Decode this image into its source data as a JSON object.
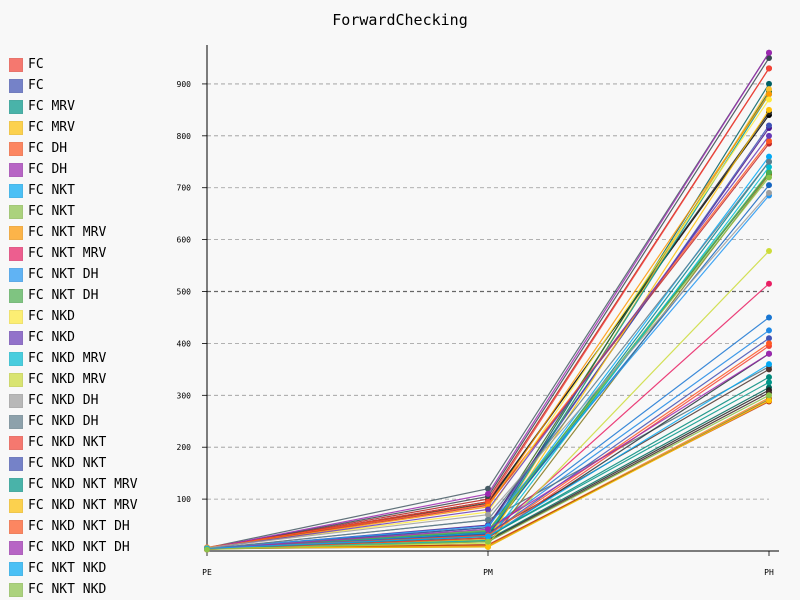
{
  "chart_data": {
    "type": "line",
    "title": "ForwardChecking",
    "categories": [
      "PE",
      "PM",
      "PH"
    ],
    "y_ticks": [
      100,
      200,
      300,
      400,
      500,
      600,
      700,
      800,
      900
    ],
    "ylim": [
      0,
      975
    ],
    "grid": true,
    "legend_position": "left",
    "series": [
      {
        "name": "FC",
        "color": "#F44336",
        "values": [
          5,
          95,
          930
        ]
      },
      {
        "name": "FC",
        "color": "#3F51B5",
        "values": [
          4,
          45,
          820
        ]
      },
      {
        "name": "FC MRV",
        "color": "#009688",
        "values": [
          6,
          30,
          880
        ]
      },
      {
        "name": "FC MRV",
        "color": "#FFC107",
        "values": [
          3,
          22,
          850
        ]
      },
      {
        "name": "FC DH",
        "color": "#FF5722",
        "values": [
          7,
          90,
          790
        ]
      },
      {
        "name": "FC DH",
        "color": "#9C27B0",
        "values": [
          5,
          110,
          960
        ]
      },
      {
        "name": "FC NKT",
        "color": "#03A9F4",
        "values": [
          4,
          35,
          760
        ]
      },
      {
        "name": "FC NKT",
        "color": "#8BC34A",
        "values": [
          6,
          40,
          720
        ]
      },
      {
        "name": "FC NKT MRV",
        "color": "#FF9800",
        "values": [
          5,
          85,
          880
        ]
      },
      {
        "name": "FC NKT MRV",
        "color": "#E91E63",
        "values": [
          3,
          30,
          515
        ]
      },
      {
        "name": "FC NKT DH",
        "color": "#2196F3",
        "values": [
          5,
          48,
          685
        ]
      },
      {
        "name": "FC NKT DH",
        "color": "#4CAF50",
        "values": [
          4,
          38,
          730
        ]
      },
      {
        "name": "FC NKD",
        "color": "#FFEB3B",
        "values": [
          6,
          75,
          870
        ]
      },
      {
        "name": "FC NKD",
        "color": "#673AB7",
        "values": [
          5,
          80,
          800
        ]
      },
      {
        "name": "FC NKD MRV",
        "color": "#00BCD4",
        "values": [
          4,
          20,
          740
        ]
      },
      {
        "name": "FC NKD MRV",
        "color": "#CDDC39",
        "values": [
          5,
          15,
          578
        ]
      },
      {
        "name": "FC NKD DH",
        "color": "#9E9E9E",
        "values": [
          6,
          70,
          690
        ]
      },
      {
        "name": "FC NKD DH",
        "color": "#607D8B",
        "values": [
          4,
          60,
          750
        ]
      },
      {
        "name": "FC NKD NKT",
        "color": "#F44336",
        "values": [
          3,
          25,
          395
        ]
      },
      {
        "name": "FC NKD NKT",
        "color": "#3F51B5",
        "values": [
          5,
          32,
          410
        ]
      },
      {
        "name": "FC NKD NKT MRV",
        "color": "#009688",
        "values": [
          4,
          28,
          325
        ]
      },
      {
        "name": "FC NKD NKT MRV",
        "color": "#FFC107",
        "values": [
          6,
          8,
          290
        ]
      },
      {
        "name": "FC NKD NKT DH",
        "color": "#FF5722",
        "values": [
          5,
          30,
          400
        ]
      },
      {
        "name": "FC NKD NKT DH",
        "color": "#9C27B0",
        "values": [
          4,
          42,
          380
        ]
      },
      {
        "name": "FC NKT NKD",
        "color": "#03A9F4",
        "values": [
          5,
          28,
          360
        ]
      },
      {
        "name": "FC NKT NKD",
        "color": "#8BC34A",
        "values": [
          3,
          18,
          300
        ]
      }
    ]
  },
  "extra_series": [
    {
      "color": "#1976D2",
      "values": [
        4,
        40,
        450
      ]
    },
    {
      "color": "#1E88E5",
      "values": [
        4,
        38,
        425
      ]
    },
    {
      "color": "#455A64",
      "values": [
        6,
        120,
        960
      ]
    },
    {
      "color": "#B71C1C",
      "values": [
        5,
        100,
        930
      ]
    },
    {
      "color": "#37474F",
      "values": [
        5,
        105,
        950
      ]
    },
    {
      "color": "#000000",
      "values": [
        5,
        95,
        840
      ]
    },
    {
      "color": "#212121",
      "values": [
        5,
        92,
        845
      ]
    },
    {
      "color": "#006064",
      "values": [
        4,
        33,
        900
      ]
    },
    {
      "color": "#33691E",
      "values": [
        5,
        45,
        885
      ]
    },
    {
      "color": "#4A148C",
      "values": [
        4,
        50,
        815
      ]
    },
    {
      "color": "#C62828",
      "values": [
        5,
        88,
        785
      ]
    },
    {
      "color": "#FBC02D",
      "values": [
        4,
        25,
        890
      ]
    },
    {
      "color": "#00838F",
      "values": [
        4,
        30,
        750
      ]
    },
    {
      "color": "#2E7D32",
      "values": [
        5,
        32,
        728
      ]
    },
    {
      "color": "#827717",
      "values": [
        4,
        12,
        725
      ]
    },
    {
      "color": "#1565C0",
      "values": [
        5,
        36,
        705
      ]
    },
    {
      "color": "#546E7A",
      "values": [
        4,
        60,
        355
      ]
    },
    {
      "color": "#263238",
      "values": [
        5,
        25,
        380
      ]
    },
    {
      "color": "#00695C",
      "values": [
        4,
        22,
        315
      ]
    },
    {
      "color": "#F57F17",
      "values": [
        4,
        10,
        295
      ]
    },
    {
      "color": "#212121",
      "values": [
        4,
        20,
        310
      ]
    },
    {
      "color": "#3E2723",
      "values": [
        4,
        18,
        305
      ]
    },
    {
      "color": "#BF360C",
      "values": [
        6,
        12,
        288
      ]
    },
    {
      "color": "#827717",
      "values": [
        5,
        8,
        292
      ]
    },
    {
      "color": "#4E342E",
      "values": [
        5,
        35,
        350
      ]
    },
    {
      "color": "#00897B",
      "values": [
        4,
        28,
        335
      ]
    }
  ]
}
